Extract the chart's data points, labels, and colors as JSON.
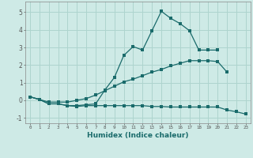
{
  "xlabel": "Humidex (Indice chaleur)",
  "background_color": "#ceeae6",
  "grid_color": "#aed4ce",
  "line_color": "#1a6b6b",
  "xlim": [
    -0.5,
    23.5
  ],
  "ylim": [
    -1.3,
    5.6
  ],
  "series": [
    {
      "x": [
        0,
        1,
        2,
        3,
        4,
        5,
        6,
        7,
        8,
        9,
        10,
        11,
        12,
        13,
        14,
        15,
        16,
        17,
        18,
        19,
        20
      ],
      "y": [
        0.2,
        0.05,
        -0.2,
        -0.2,
        -0.3,
        -0.3,
        -0.25,
        -0.2,
        0.6,
        1.3,
        2.55,
        3.05,
        2.85,
        3.95,
        5.05,
        4.65,
        4.35,
        3.95,
        2.85,
        2.85,
        2.85
      ]
    },
    {
      "x": [
        0,
        1,
        2,
        3,
        4,
        5,
        6,
        7,
        8,
        9,
        10,
        11,
        12,
        13,
        14,
        15,
        16,
        17,
        18,
        19,
        20,
        21
      ],
      "y": [
        0.2,
        0.05,
        -0.1,
        -0.1,
        -0.1,
        0.0,
        0.1,
        0.3,
        0.55,
        0.8,
        1.05,
        1.2,
        1.4,
        1.6,
        1.75,
        1.95,
        2.1,
        2.25,
        2.25,
        2.25,
        2.2,
        1.6
      ]
    },
    {
      "x": [
        0,
        1,
        2,
        3,
        4,
        5,
        6,
        7,
        8,
        9,
        10,
        11,
        12,
        13,
        14,
        15,
        16,
        17,
        18,
        19,
        20,
        21,
        22,
        23
      ],
      "y": [
        0.2,
        0.05,
        -0.2,
        -0.2,
        -0.3,
        -0.35,
        -0.3,
        -0.3,
        -0.3,
        -0.3,
        -0.3,
        -0.3,
        -0.3,
        -0.35,
        -0.35,
        -0.38,
        -0.38,
        -0.38,
        -0.38,
        -0.38,
        -0.38,
        -0.55,
        -0.65,
        -0.78
      ]
    }
  ],
  "xticks": [
    0,
    1,
    2,
    3,
    4,
    5,
    6,
    7,
    8,
    9,
    10,
    11,
    12,
    13,
    14,
    15,
    16,
    17,
    18,
    19,
    20,
    21,
    22,
    23
  ],
  "yticks": [
    -1,
    0,
    1,
    2,
    3,
    4,
    5
  ]
}
